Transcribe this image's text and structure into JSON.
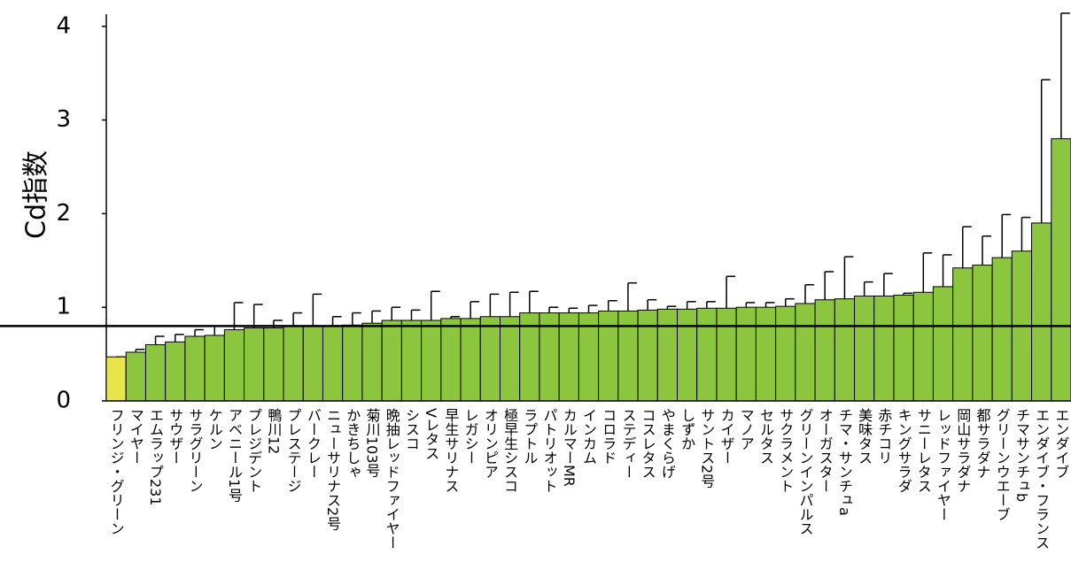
{
  "chart_data": {
    "type": "bar",
    "y_label": "Cd指数",
    "categories": [
      "フリンジ・グリーン",
      "マイヤー",
      "エムラップ231",
      "サウザー",
      "サラグリーン",
      "ケルン",
      "アベニール1号",
      "プレジデント",
      "鴨川12",
      "プレステージ",
      "バークレー",
      "ニューサリナス2号",
      "かきちしゃ",
      "菊川103号",
      "晩抽レッドファイヤー",
      "シスコ",
      "Vレタス",
      "早生サリナス",
      "レガシー",
      "オリンピア",
      "極早生シスコ",
      "ラプトル",
      "パトリオット",
      "カルマーMR",
      "インカム",
      "コロラド",
      "ステディー",
      "コスレタス",
      "やまくらげ",
      "しずか",
      "サントス2号",
      "カイザー",
      "マノア",
      "セルタス",
      "サクラメント",
      "グリーンインパルス",
      "オーガスター",
      "チマ・サンチュa",
      "美味タス",
      "赤チコリ",
      "キングサラダ",
      "サニーレタス",
      "レッドファイヤー",
      "岡山サラダナ",
      "都サラダナ",
      "グリーンウエーブ",
      "チマサンチュb",
      "エンダイブ・フランス",
      "エンダイブ"
    ],
    "values": [
      0.47,
      0.52,
      0.6,
      0.63,
      0.69,
      0.7,
      0.76,
      0.78,
      0.78,
      0.8,
      0.8,
      0.8,
      0.81,
      0.83,
      0.86,
      0.86,
      0.86,
      0.88,
      0.88,
      0.9,
      0.9,
      0.94,
      0.94,
      0.94,
      0.94,
      0.96,
      0.96,
      0.97,
      0.98,
      0.98,
      0.99,
      0.99,
      1.0,
      1.0,
      1.01,
      1.04,
      1.08,
      1.09,
      1.12,
      1.12,
      1.13,
      1.16,
      1.22,
      1.42,
      1.45,
      1.53,
      1.6,
      1.9,
      2.8
    ],
    "errors": [
      0.0,
      0.03,
      0.09,
      0.08,
      0.07,
      0.1,
      0.29,
      0.25,
      0.08,
      0.14,
      0.34,
      0.1,
      0.13,
      0.13,
      0.14,
      0.11,
      0.31,
      0.02,
      0.18,
      0.24,
      0.26,
      0.23,
      0.06,
      0.05,
      0.08,
      0.11,
      0.3,
      0.11,
      0.03,
      0.08,
      0.07,
      0.34,
      0.05,
      0.05,
      0.08,
      0.2,
      0.3,
      0.45,
      0.15,
      0.24,
      0.02,
      0.42,
      0.34,
      0.44,
      0.31,
      0.46,
      0.36,
      1.53,
      1.34
    ],
    "colors": [
      "#e6e64a",
      "#8cc63f",
      "#8cc63f",
      "#8cc63f",
      "#8cc63f",
      "#8cc63f",
      "#8cc63f",
      "#8cc63f",
      "#8cc63f",
      "#8cc63f",
      "#8cc63f",
      "#8cc63f",
      "#8cc63f",
      "#8cc63f",
      "#8cc63f",
      "#8cc63f",
      "#8cc63f",
      "#8cc63f",
      "#8cc63f",
      "#8cc63f",
      "#8cc63f",
      "#8cc63f",
      "#8cc63f",
      "#8cc63f",
      "#8cc63f",
      "#8cc63f",
      "#8cc63f",
      "#8cc63f",
      "#8cc63f",
      "#8cc63f",
      "#8cc63f",
      "#8cc63f",
      "#8cc63f",
      "#8cc63f",
      "#8cc63f",
      "#8cc63f",
      "#8cc63f",
      "#8cc63f",
      "#8cc63f",
      "#8cc63f",
      "#8cc63f",
      "#8cc63f",
      "#8cc63f",
      "#8cc63f",
      "#8cc63f",
      "#8cc63f",
      "#8cc63f",
      "#8cc63f",
      "#8cc63f"
    ],
    "reference_line": 0.8,
    "ylim": [
      0,
      4.13
    ],
    "yticks": [
      0,
      1,
      2,
      3,
      4
    ],
    "grid": false
  }
}
